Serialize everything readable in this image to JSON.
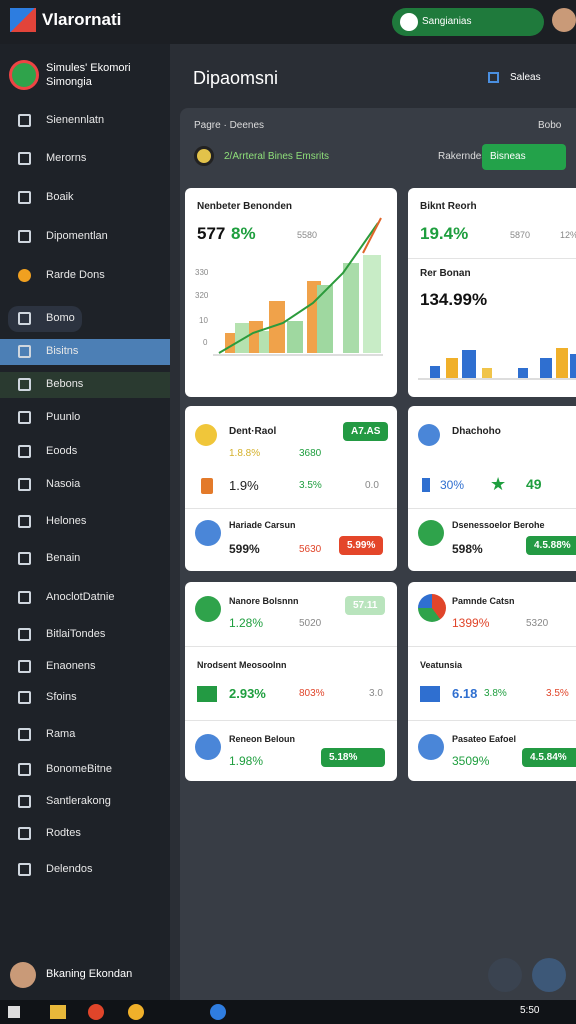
{
  "topbar": {
    "title": "Vlarornati",
    "search": "Sangianias"
  },
  "sidebar": {
    "profile": {
      "name": "Simules' Ekomori",
      "subtitle": "Simongia"
    },
    "items": [
      "Sienennlatn",
      "Merorns",
      "Boaik",
      "Dipomentlan",
      "Rarde Dons",
      "Bomo",
      "Bisitns",
      "Bebons",
      "Puunlo",
      "Eoods",
      "Nasoia",
      "Helones",
      "Benain",
      "AnoclotDatnie",
      "BitlaiTondes",
      "Enaonens",
      "Sfoins",
      "Rama",
      "BonomeBitne",
      "Santlerakong",
      "Rodtes",
      "Delendos"
    ],
    "user": "Bkaning Ekondan"
  },
  "main": {
    "title": "Dipaomsni",
    "sort": "Saleas",
    "panel": {
      "title": "Pagre · Deenes",
      "search": "Bobo",
      "filter": "2/Arrteral Bines Emsrits",
      "filter_label": "Rakerndes",
      "button": "Bisneas"
    }
  },
  "cards": {
    "c1": {
      "title": "Nenbeter Benonden",
      "value": "577",
      "change": "8%",
      "side": "5580",
      "axis": [
        "330",
        "320",
        "10",
        "0"
      ]
    },
    "c2": {
      "title": "Biknt Reorh",
      "value": "19.4%",
      "side": "5870",
      "extra": "12%",
      "sub": "Rer Bonan",
      "sub_value": "134.99%"
    },
    "c3": {
      "title": "Dent·Raol",
      "badge": "A7.AS",
      "a": "1.8.8%",
      "b": "3680",
      "c": "1.9%",
      "d": "3.5%",
      "e": "0.0",
      "title2": "Hariade Carsun",
      "f": "599%",
      "g": "5630",
      "badge2": "5.99%"
    },
    "c4": {
      "title": "Dhachoho",
      "a": "30%",
      "b": "49",
      "title2": "Dsenessoelor Berohe",
      "c": "598%",
      "badge2": "4.5.88%"
    },
    "c5": {
      "title": "Nanore Bolsnnn",
      "a": "1.28%",
      "b": "5020",
      "badge": "57.11",
      "title2": "Nrodsent Meosoolnn",
      "c": "2.93%",
      "d": "803%",
      "e": "3.0",
      "title3": "Reneon Beloun",
      "f": "1.98%",
      "badge3": "5.18%"
    },
    "c6": {
      "title": "Pamnde Catsn",
      "a": "1399%",
      "b": "5320",
      "title2": "Veatunsia",
      "c": "6.18",
      "d": "3.8%",
      "e": "3.5%",
      "title3": "Pasateo Eafoel",
      "f": "3509%",
      "badge3": "4.5.84%"
    }
  },
  "taskbar": {
    "time": "5:50"
  }
}
